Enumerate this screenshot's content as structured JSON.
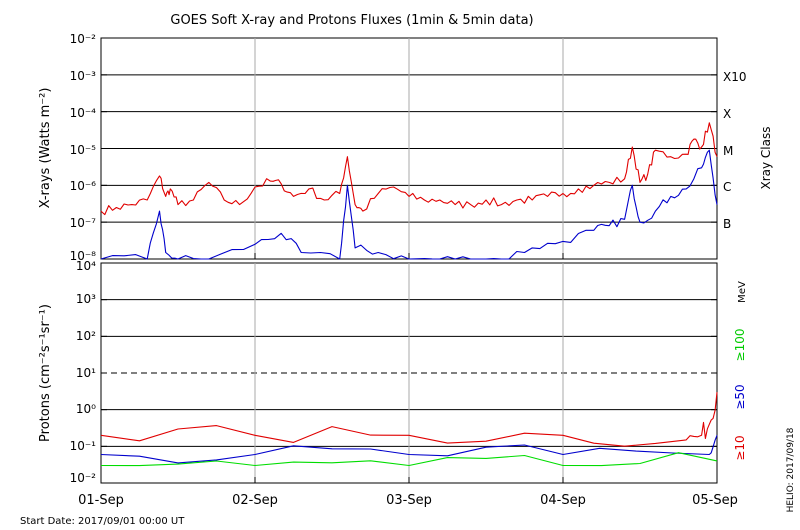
{
  "title": "GOES Soft X-ray and Protons Fluxes   (1min & 5min data)",
  "start_date": "Start Date: 2017/09/01 00:00 UT",
  "credit": "HELIO: 2017/09/18",
  "x_ticks": [
    "01-Sep",
    "02-Sep",
    "03-Sep",
    "04-Sep",
    "05-Sep"
  ],
  "xray_panel": {
    "ylabel": "X-rays (Watts m⁻²)",
    "y_ticks": [
      "10⁻²",
      "10⁻³",
      "10⁻⁴",
      "10⁻⁵",
      "10⁻⁶",
      "10⁻⁷",
      "10⁻⁸"
    ],
    "class_axis_label": "Xray Class",
    "classes": [
      "X10",
      "X",
      "M",
      "C",
      "B"
    ]
  },
  "proton_panel": {
    "ylabel": "Protons (cm⁻²s⁻¹sr⁻¹)",
    "y_ticks": [
      "10⁴",
      "10³",
      "10²",
      "10¹",
      "10⁰",
      "10⁻¹",
      "10⁻²"
    ],
    "unit": "MeV",
    "energies": [
      "≥100",
      "≥50",
      "≥10"
    ]
  },
  "colors": {
    "long_xray": "#e00000",
    "short_xray": "#0000cc",
    "p10": "#e00000",
    "p50": "#0000cc",
    "p100": "#00dd00",
    "grid": "#000000",
    "day_lines": "#aaaaaa"
  },
  "chart_data": [
    {
      "type": "line",
      "title": "GOES Soft X-ray and Protons Fluxes   (1min & 5min data)",
      "xlabel": "",
      "ylabel": "X-rays (Watts m⁻²)",
      "x_unit": "days since 2017-09-01 00:00 UT",
      "xlim": [
        0,
        4
      ],
      "ylim": [
        1e-08,
        0.01
      ],
      "yscale": "log",
      "grid": true,
      "series": [
        {
          "color": "#e00000",
          "x": [
            0,
            0.1,
            0.2,
            0.3,
            0.38,
            0.42,
            0.45,
            0.5,
            0.6,
            0.7,
            0.8,
            0.9,
            1.0,
            1.1,
            1.17,
            1.25,
            1.35,
            1.45,
            1.55,
            1.6,
            1.65,
            1.7,
            1.8,
            1.9,
            2.0,
            2.1,
            2.2,
            2.3,
            2.4,
            2.5,
            2.6,
            2.7,
            2.8,
            2.9,
            3.0,
            3.1,
            3.2,
            3.3,
            3.4,
            3.45,
            3.5,
            3.55,
            3.6,
            3.7,
            3.8,
            3.85,
            3.9,
            3.95,
            4.0
          ],
          "y": [
            2e-07,
            2.5e-07,
            3e-07,
            4e-07,
            1.8e-06,
            5e-07,
            8e-07,
            3e-07,
            4e-07,
            1.2e-06,
            4e-07,
            3e-07,
            9e-07,
            1.3e-06,
            1.1e-06,
            5e-07,
            8e-07,
            4e-07,
            6e-07,
            6e-06,
            3e-07,
            2e-07,
            6e-07,
            9e-07,
            5e-07,
            4e-07,
            4e-07,
            3e-07,
            3e-07,
            4e-07,
            3e-07,
            4e-07,
            4e-07,
            5e-07,
            6e-07,
            8e-07,
            1e-06,
            1.2e-06,
            1.5e-06,
            1.1e-05,
            1.2e-06,
            2e-06,
            9e-06,
            6e-06,
            7e-06,
            1.8e-05,
            1.1e-05,
            5e-05,
            6e-06
          ]
        },
        {
          "color": "#0000cc",
          "x": [
            0,
            0.3,
            0.38,
            0.42,
            0.5,
            0.7,
            1.0,
            1.17,
            1.3,
            1.55,
            1.6,
            1.65,
            1.8,
            2.0,
            2.2,
            2.4,
            2.6,
            2.8,
            3.0,
            3.2,
            3.3,
            3.4,
            3.45,
            3.5,
            3.6,
            3.7,
            3.8,
            3.9,
            3.95,
            4.0
          ],
          "y": [
            1e-08,
            1e-08,
            2e-07,
            1.5e-08,
            1e-08,
            1e-08,
            2.5e-08,
            5e-08,
            1.5e-08,
            1e-08,
            1e-06,
            2e-08,
            1.5e-08,
            1e-08,
            1e-08,
            1e-08,
            1e-08,
            2e-08,
            3e-08,
            6e-08,
            8e-08,
            1.2e-07,
            1e-06,
            1e-07,
            2e-07,
            5e-07,
            8e-07,
            3e-06,
            9e-06,
            3e-07
          ]
        }
      ]
    },
    {
      "type": "line",
      "title": "",
      "xlabel": "",
      "ylabel": "Protons (cm⁻²s⁻¹sr⁻¹)",
      "x_unit": "days since 2017-09-01 00:00 UT",
      "x_ticks": [
        "01-Sep",
        "02-Sep",
        "03-Sep",
        "04-Sep",
        "05-Sep"
      ],
      "xlim": [
        0,
        4
      ],
      "ylim": [
        0.01,
        10000.0
      ],
      "yscale": "log",
      "grid": true,
      "reference_line": 10,
      "series": [
        {
          "name": "≥10",
          "color": "#e00000",
          "x": [
            0,
            1,
            2,
            3,
            3.8,
            3.9,
            3.95,
            4.0
          ],
          "y": [
            0.2,
            0.2,
            0.2,
            0.2,
            0.15,
            0.2,
            0.4,
            3.0
          ]
        },
        {
          "name": "≥50",
          "color": "#0000cc",
          "x": [
            0,
            1,
            2,
            3,
            3.95,
            4.0
          ],
          "y": [
            0.06,
            0.06,
            0.06,
            0.06,
            0.06,
            0.2
          ]
        },
        {
          "name": "≥100",
          "color": "#00dd00",
          "x": [
            0,
            1,
            2,
            3,
            4.0
          ],
          "y": [
            0.03,
            0.03,
            0.03,
            0.03,
            0.04
          ]
        }
      ]
    }
  ]
}
